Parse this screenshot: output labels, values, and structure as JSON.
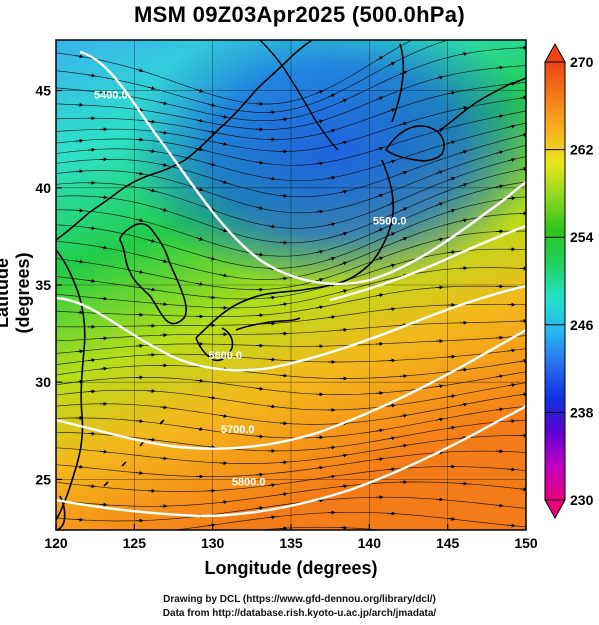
{
  "title": "MSM 09Z03Apr2025 (500.0hPa)",
  "xlabel": "Longitude (degrees)",
  "ylabel": "Latitude  (degrees)",
  "credit_line1": "Drawing by DCL (https://www.gfd-dennou.org/library/dcl/)",
  "credit_line2": "Data from http://database.rish.kyoto-u.ac.jp/arch/jmadata/",
  "map": {
    "lon_range": [
      120,
      150
    ],
    "lat_range": [
      22.4,
      47.6
    ],
    "lon_ticks": [
      "120",
      "125",
      "130",
      "135",
      "140",
      "145",
      "150"
    ],
    "lat_ticks": [
      "25",
      "30",
      "35",
      "40",
      "45"
    ],
    "lon_tick_values": [
      120,
      125,
      130,
      135,
      140,
      145,
      150
    ],
    "lat_tick_values": [
      25,
      30,
      35,
      40,
      45
    ],
    "contour_labels": [
      {
        "text": "5400.0",
        "lon": 123.5,
        "lat": 44.6
      },
      {
        "text": "5600.0",
        "lon": 130.8,
        "lat": 31.2
      },
      {
        "text": "5700.0",
        "lon": 131.6,
        "lat": 27.4
      },
      {
        "text": "5800.0",
        "lon": 132.3,
        "lat": 24.7
      },
      {
        "text": "5500.0",
        "lon": 141.3,
        "lat": 38.1
      }
    ]
  },
  "colorbar": {
    "min": 230,
    "max": 270,
    "tick_labels": [
      "270",
      "262",
      "254",
      "246",
      "238",
      "230"
    ],
    "tick_values": [
      270,
      262,
      254,
      246,
      238,
      230
    ],
    "colors": [
      "#e8007c",
      "#c000c0",
      "#6000d0",
      "#1030e0",
      "#2a6cf0",
      "#25b8f0",
      "#27e0c8",
      "#20d060",
      "#2cc41e",
      "#8ed820",
      "#e8e61c",
      "#f7b020",
      "#f47a18",
      "#ee4416"
    ]
  },
  "field_colors": {
    "low_core": "#1e5ee8",
    "cold": "#38b4f0",
    "cool": "#2fe0c8",
    "mid": "#22cc48",
    "warm": "#b6de18",
    "hot": "#f4b81c",
    "hottest": "#f47c18"
  }
}
